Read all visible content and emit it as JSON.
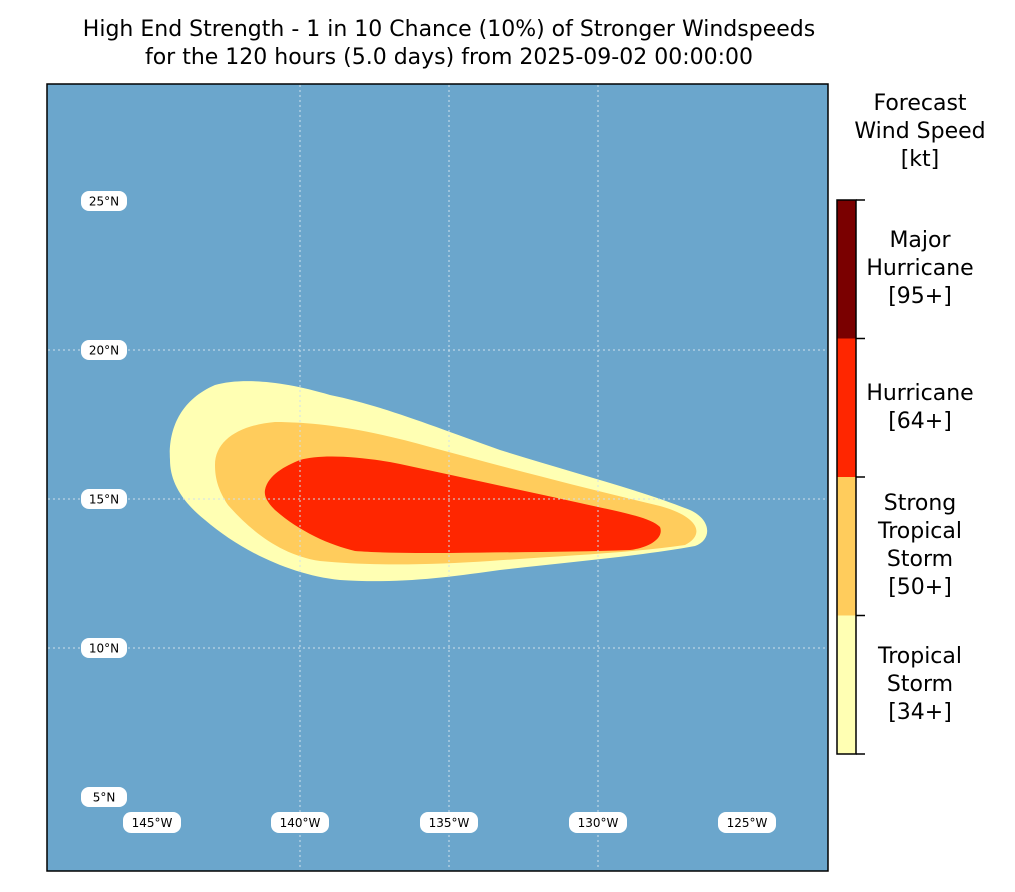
{
  "title": {
    "line1": "High End Strength - 1 in 10 Chance (10%) of Stronger Windspeeds",
    "line2": "for the 120 hours (5.0 days) from 2025-09-02 00:00:00"
  },
  "map": {
    "ocean_color": "#6ba6cc",
    "lat_labels": [
      "25°N",
      "20°N",
      "15°N",
      "10°N",
      "5°N"
    ],
    "lon_labels": [
      "145°W",
      "140°W",
      "135°W",
      "130°W",
      "125°W"
    ]
  },
  "colorbar": {
    "title_lines": [
      "Forecast",
      "Wind Speed",
      "[kt]"
    ],
    "categories": [
      {
        "lines": [
          "Major",
          "Hurricane",
          "[95+]"
        ],
        "color": "#7a0000"
      },
      {
        "lines": [
          "Hurricane",
          "[64+]"
        ],
        "color": "#ff2600"
      },
      {
        "lines": [
          "Strong",
          "Tropical",
          "Storm",
          "[50+]"
        ],
        "color": "#ffcc5c"
      },
      {
        "lines": [
          "Tropical",
          "Storm",
          "[34+]"
        ],
        "color": "#ffffb3"
      }
    ]
  }
}
